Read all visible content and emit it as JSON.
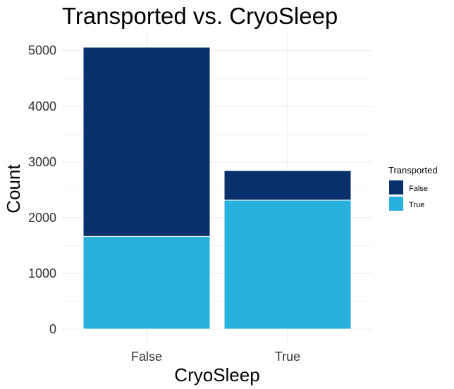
{
  "chart_data": {
    "type": "bar",
    "stacked": true,
    "title": "Transported vs. CryoSleep",
    "xlabel": "CryoSleep",
    "ylabel": "Count",
    "categories": [
      "False",
      "True"
    ],
    "series": [
      {
        "name": "True",
        "values": [
          1665,
          2315
        ],
        "color": "#29b0de"
      },
      {
        "name": "False",
        "values": [
          3395,
          530
        ],
        "color": "#08306b"
      }
    ],
    "ylim": [
      0,
      5300
    ],
    "yticks": [
      0,
      1000,
      2000,
      3000,
      4000,
      5000
    ],
    "grid": true,
    "legend": {
      "title": "Transported",
      "position": "right",
      "entries": [
        {
          "label": "False",
          "color": "#08306b"
        },
        {
          "label": "True",
          "color": "#29b0de"
        }
      ]
    }
  }
}
